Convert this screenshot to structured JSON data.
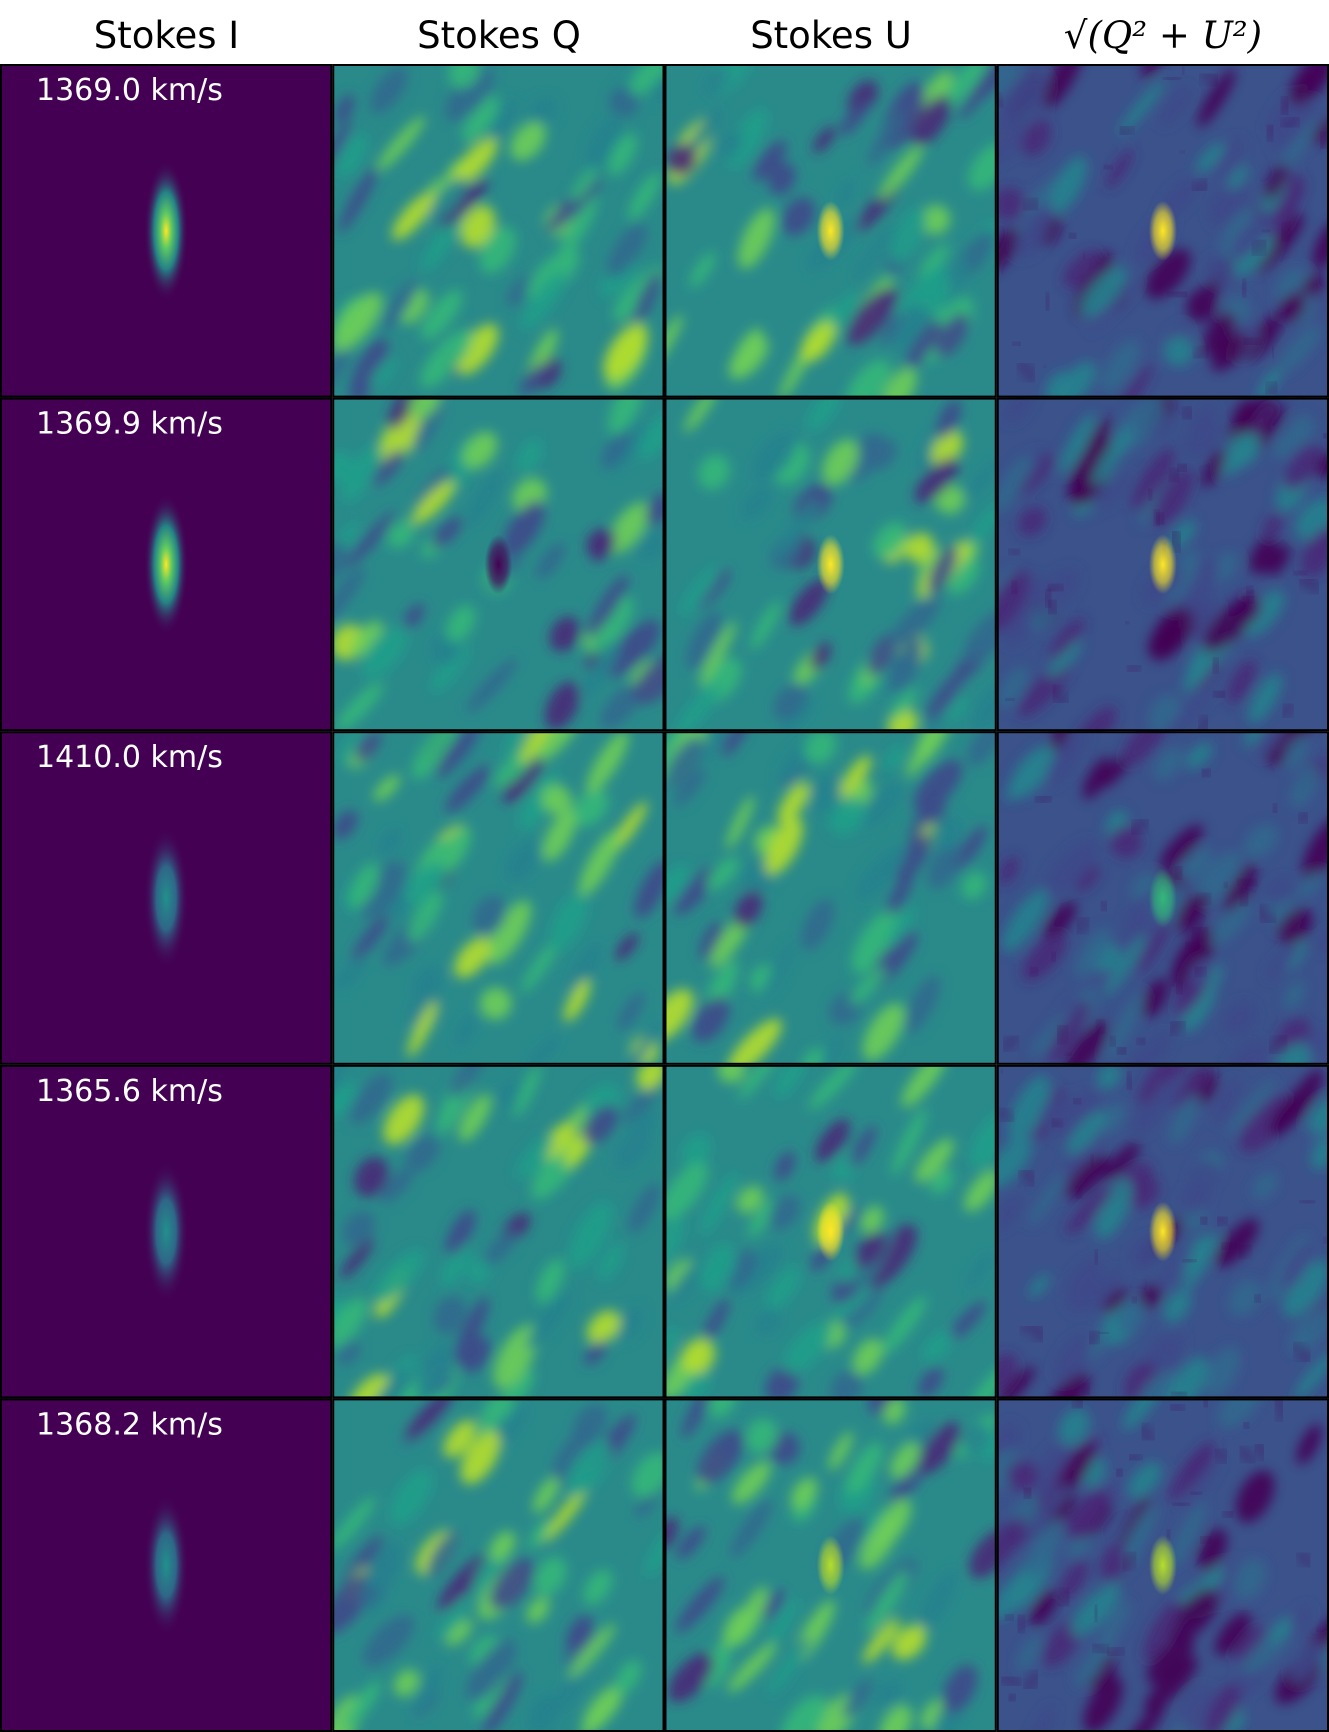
{
  "columns": [
    {
      "label": "Stokes I"
    },
    {
      "label": "Stokes Q"
    },
    {
      "label": "Stokes U"
    },
    {
      "label": "√(Q² + U²)"
    }
  ],
  "rows": [
    {
      "label": "1369.0 km/s"
    },
    {
      "label": "1369.9 km/s"
    },
    {
      "label": "1410.0 km/s"
    },
    {
      "label": "1365.6 km/s"
    },
    {
      "label": "1368.2 km/s"
    }
  ],
  "colors": {
    "background": "#440154",
    "mid": "#21918c",
    "peak": "#fde725",
    "border": "#000000",
    "label_text": "#ffffff"
  },
  "chart_data": {
    "type": "heatmap",
    "colormap": "viridis",
    "panels": [
      {
        "row": "1369.0 km/s",
        "column": "Stokes I",
        "source_peak": 1.0
      },
      {
        "row": "1369.0 km/s",
        "column": "Stokes Q",
        "source_peak": 0.0
      },
      {
        "row": "1369.0 km/s",
        "column": "Stokes U",
        "source_peak": 1.0
      },
      {
        "row": "1369.0 km/s",
        "column": "√(Q² + U²)",
        "source_peak": 1.0
      },
      {
        "row": "1369.9 km/s",
        "column": "Stokes I",
        "source_peak": 1.0
      },
      {
        "row": "1369.9 km/s",
        "column": "Stokes Q",
        "source_peak": -1.0
      },
      {
        "row": "1369.9 km/s",
        "column": "Stokes U",
        "source_peak": 1.0
      },
      {
        "row": "1369.9 km/s",
        "column": "√(Q² + U²)",
        "source_peak": 1.0
      },
      {
        "row": "1410.0 km/s",
        "column": "Stokes I",
        "source_peak": 0.5
      },
      {
        "row": "1410.0 km/s",
        "column": "Stokes Q",
        "source_peak": 0.0
      },
      {
        "row": "1410.0 km/s",
        "column": "Stokes U",
        "source_peak": 0.0
      },
      {
        "row": "1410.0 km/s",
        "column": "√(Q² + U²)",
        "source_peak": 0.3
      },
      {
        "row": "1365.6 km/s",
        "column": "Stokes I",
        "source_peak": 0.4
      },
      {
        "row": "1365.6 km/s",
        "column": "Stokes Q",
        "source_peak": 0.0
      },
      {
        "row": "1365.6 km/s",
        "column": "Stokes U",
        "source_peak": 1.0
      },
      {
        "row": "1365.6 km/s",
        "column": "√(Q² + U²)",
        "source_peak": 0.8
      },
      {
        "row": "1368.2 km/s",
        "column": "Stokes I",
        "source_peak": 0.4
      },
      {
        "row": "1368.2 km/s",
        "column": "Stokes Q",
        "source_peak": 0.0
      },
      {
        "row": "1368.2 km/s",
        "column": "Stokes U",
        "source_peak": 0.7
      },
      {
        "row": "1368.2 km/s",
        "column": "√(Q² + U²)",
        "source_peak": 0.6
      }
    ]
  }
}
